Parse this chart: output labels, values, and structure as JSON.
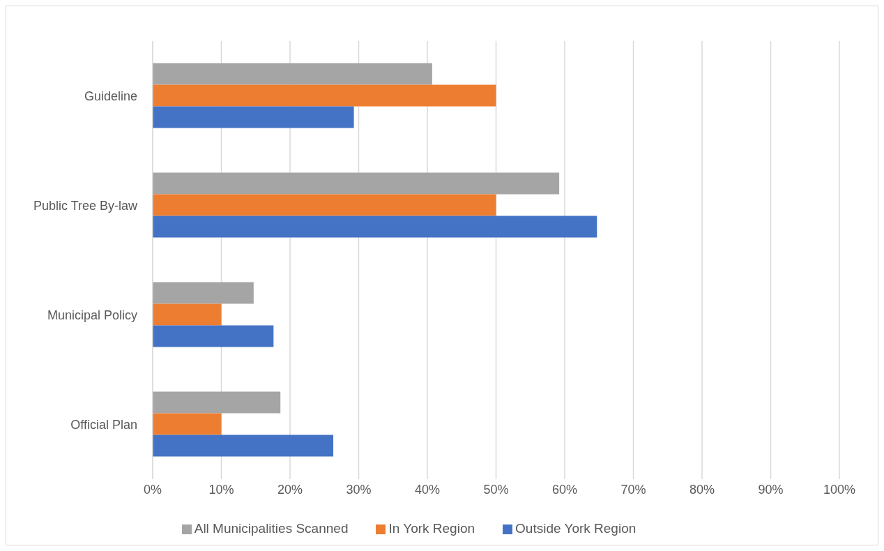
{
  "chart_data": {
    "type": "bar",
    "orientation": "horizontal",
    "categories": [
      "Guideline",
      "Public Tree By-law",
      "Municipal Policy",
      "Official Plan"
    ],
    "series": [
      {
        "name": "All Municipalities Scanned",
        "color": "#a5a5a5",
        "values": [
          40.7,
          59.2,
          14.7,
          18.6
        ]
      },
      {
        "name": "In York Region",
        "color": "#ed7d31",
        "values": [
          50,
          50,
          10,
          10
        ]
      },
      {
        "name": "Outside York Region",
        "color": "#4472c4",
        "values": [
          29.3,
          64.7,
          17.6,
          26.3
        ]
      }
    ],
    "xlim": [
      0,
      100
    ],
    "xticks": [
      {
        "value": 0,
        "label": "0%"
      },
      {
        "value": 10,
        "label": "10%"
      },
      {
        "value": 20,
        "label": "20%"
      },
      {
        "value": 30,
        "label": "30%"
      },
      {
        "value": 40,
        "label": "40%"
      },
      {
        "value": 50,
        "label": "50%"
      },
      {
        "value": 60,
        "label": "60%"
      },
      {
        "value": 70,
        "label": "70%"
      },
      {
        "value": 80,
        "label": "80%"
      },
      {
        "value": 90,
        "label": "90%"
      },
      {
        "value": 100,
        "label": "100%"
      }
    ],
    "grid": "x",
    "legend": "bottom"
  }
}
